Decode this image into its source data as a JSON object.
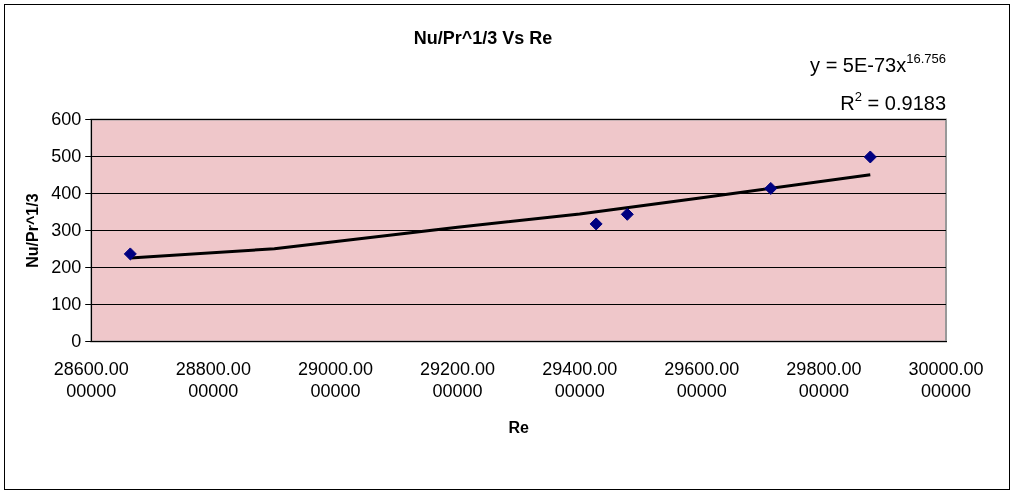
{
  "chart_data": {
    "type": "scatter",
    "title": "Nu/Pr^1/3 Vs Re",
    "xlabel": "Re",
    "ylabel": "Nu/Pr^1/3",
    "annotations": [
      "y = 5E-73x$^{16.756}$",
      "R$^{2}$ = 0.9183"
    ],
    "series": [
      {
        "color": "#000080",
        "marker": "diamond",
        "x": [
          28664,
          29427,
          29478,
          29713,
          29876
        ],
        "values": [
          237,
          318,
          344,
          414,
          499
        ]
      },
      {
        "type": "line",
        "color": "#000000",
        "marker": "none",
        "x": [
          28664,
          28900,
          29200,
          29400,
          29600,
          29876
        ],
        "values": [
          226,
          251,
          309,
          345,
          389,
          451
        ]
      }
    ],
    "xlim": [
      28600,
      30000
    ],
    "xticks": [
      {
        "value": 28600,
        "label": "28600.0000000"
      },
      {
        "value": 28800,
        "label": "28800.0000000"
      },
      {
        "value": 29000,
        "label": "29000.0000000"
      },
      {
        "value": 29200,
        "label": "29200.0000000"
      },
      {
        "value": 29400,
        "label": "29400.0000000"
      },
      {
        "value": 29600,
        "label": "29600.0000000"
      },
      {
        "value": 29800,
        "label": "29800.0000000"
      },
      {
        "value": 30000,
        "label": "30000.0000000"
      }
    ],
    "ylim": [
      0,
      600
    ],
    "yticks": [
      0,
      100,
      200,
      300,
      400,
      500,
      600
    ],
    "grid": "y",
    "legend": false
  }
}
